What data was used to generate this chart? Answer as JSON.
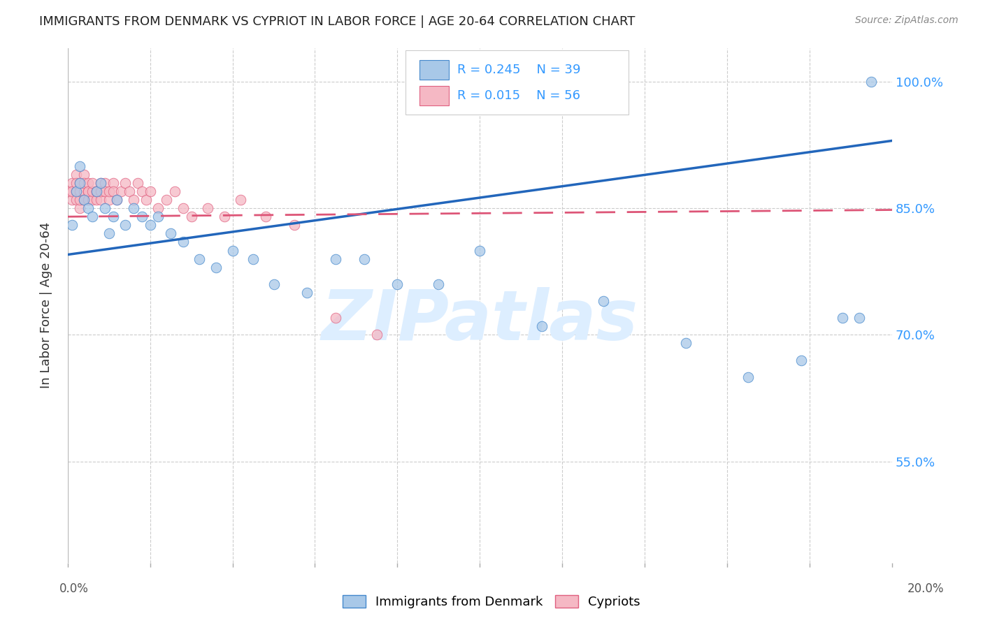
{
  "title": "IMMIGRANTS FROM DENMARK VS CYPRIOT IN LABOR FORCE | AGE 20-64 CORRELATION CHART",
  "source": "Source: ZipAtlas.com",
  "ylabel": "In Labor Force | Age 20-64",
  "yticks": [
    1.0,
    0.85,
    0.7,
    0.55
  ],
  "ytick_labels": [
    "100.0%",
    "85.0%",
    "70.0%",
    "55.0%"
  ],
  "xlim": [
    0.0,
    0.2
  ],
  "ylim": [
    0.43,
    1.04
  ],
  "r_denmark": 0.245,
  "n_denmark": 39,
  "r_cypriot": 0.015,
  "n_cypriot": 56,
  "legend_label_denmark": "Immigrants from Denmark",
  "legend_label_cypriot": "Cypriots",
  "denmark_color": "#a8c8e8",
  "denmark_edge_color": "#4488cc",
  "cypriot_color": "#f5b8c4",
  "cypriot_edge_color": "#e06080",
  "denmark_line_color": "#2266bb",
  "cypriot_line_color": "#dd5577",
  "background_color": "#ffffff",
  "grid_color": "#cccccc",
  "watermark": "ZIPatlas",
  "watermark_color": "#ddeeff",
  "denmark_x": [
    0.001,
    0.002,
    0.003,
    0.003,
    0.004,
    0.005,
    0.006,
    0.007,
    0.008,
    0.009,
    0.01,
    0.011,
    0.012,
    0.014,
    0.016,
    0.018,
    0.02,
    0.022,
    0.025,
    0.028,
    0.032,
    0.036,
    0.04,
    0.045,
    0.05,
    0.058,
    0.065,
    0.072,
    0.08,
    0.09,
    0.1,
    0.115,
    0.13,
    0.15,
    0.165,
    0.178,
    0.188,
    0.192,
    0.195
  ],
  "denmark_y": [
    0.83,
    0.87,
    0.88,
    0.9,
    0.86,
    0.85,
    0.84,
    0.87,
    0.88,
    0.85,
    0.82,
    0.84,
    0.86,
    0.83,
    0.85,
    0.84,
    0.83,
    0.84,
    0.82,
    0.81,
    0.79,
    0.78,
    0.8,
    0.79,
    0.76,
    0.75,
    0.79,
    0.79,
    0.76,
    0.76,
    0.8,
    0.71,
    0.74,
    0.69,
    0.65,
    0.67,
    0.72,
    0.72,
    1.0
  ],
  "cypriot_x": [
    0.0005,
    0.001,
    0.001,
    0.001,
    0.002,
    0.002,
    0.002,
    0.002,
    0.003,
    0.003,
    0.003,
    0.003,
    0.004,
    0.004,
    0.004,
    0.004,
    0.005,
    0.005,
    0.005,
    0.005,
    0.006,
    0.006,
    0.006,
    0.007,
    0.007,
    0.007,
    0.008,
    0.008,
    0.008,
    0.009,
    0.009,
    0.01,
    0.01,
    0.011,
    0.011,
    0.012,
    0.013,
    0.014,
    0.015,
    0.016,
    0.017,
    0.018,
    0.019,
    0.02,
    0.022,
    0.024,
    0.026,
    0.028,
    0.03,
    0.034,
    0.038,
    0.042,
    0.048,
    0.055,
    0.065,
    0.075
  ],
  "cypriot_y": [
    0.87,
    0.88,
    0.86,
    0.87,
    0.87,
    0.86,
    0.89,
    0.88,
    0.85,
    0.86,
    0.87,
    0.88,
    0.89,
    0.87,
    0.86,
    0.88,
    0.87,
    0.88,
    0.86,
    0.87,
    0.86,
    0.87,
    0.88,
    0.87,
    0.86,
    0.87,
    0.88,
    0.86,
    0.87,
    0.88,
    0.87,
    0.86,
    0.87,
    0.88,
    0.87,
    0.86,
    0.87,
    0.88,
    0.87,
    0.86,
    0.88,
    0.87,
    0.86,
    0.87,
    0.85,
    0.86,
    0.87,
    0.85,
    0.84,
    0.85,
    0.84,
    0.86,
    0.84,
    0.83,
    0.72,
    0.7
  ],
  "xtick_positions": [
    0.0,
    0.02,
    0.04,
    0.06,
    0.08,
    0.1,
    0.12,
    0.14,
    0.16,
    0.18,
    0.2
  ]
}
